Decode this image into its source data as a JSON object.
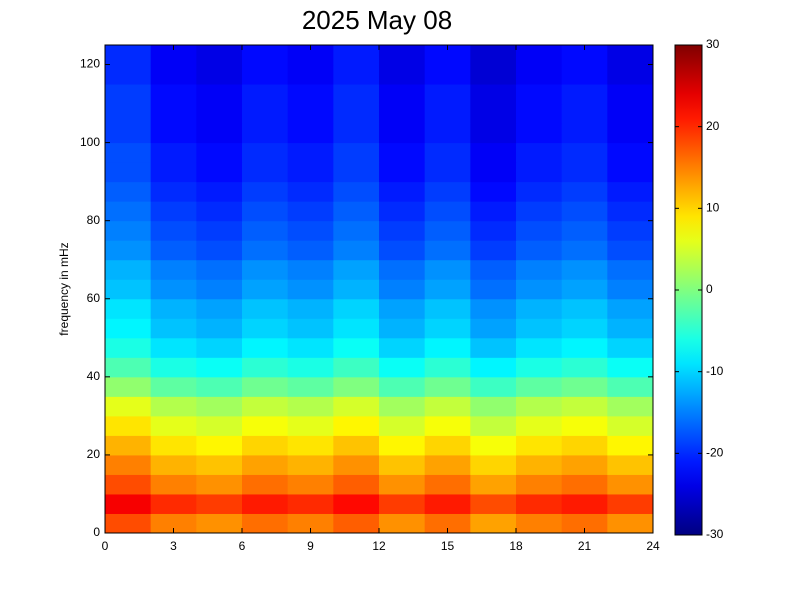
{
  "chart_data": {
    "type": "heatmap",
    "title": "2025 May 08",
    "y_label": "frequency in mHz",
    "colormap": "jet",
    "xbins": [
      0,
      2,
      4,
      6,
      8,
      10,
      12,
      14,
      16,
      18,
      20,
      22,
      24
    ],
    "ybins": [
      0,
      5,
      10,
      15,
      20,
      25,
      30,
      35,
      40,
      45,
      50,
      55,
      60,
      65,
      70,
      75,
      80,
      85,
      90,
      95,
      100,
      105,
      110,
      115,
      120,
      125
    ],
    "values": [
      [
        18,
        15,
        14,
        16,
        15,
        17,
        14,
        16,
        13,
        15,
        16,
        14
      ],
      [
        23,
        20,
        19,
        21,
        20,
        22,
        19,
        21,
        18,
        20,
        21,
        19
      ],
      [
        18,
        15,
        14,
        16,
        15,
        17,
        14,
        16,
        13,
        15,
        16,
        14
      ],
      [
        15,
        12,
        11,
        13,
        12,
        14,
        11,
        13,
        10,
        12,
        13,
        11
      ],
      [
        12,
        9,
        8,
        10,
        9,
        11,
        8,
        10,
        7,
        9,
        10,
        8
      ],
      [
        9,
        6,
        5,
        7,
        6,
        8,
        5,
        7,
        4,
        6,
        7,
        5
      ],
      [
        6,
        3,
        2,
        4,
        3,
        5,
        2,
        4,
        1,
        3,
        4,
        2
      ],
      [
        1,
        -2,
        -3,
        -1,
        -2,
        0,
        -3,
        -1,
        -4,
        -2,
        -1,
        -3
      ],
      [
        -3,
        -6,
        -7,
        -5,
        -6,
        -4,
        -7,
        -5,
        -8,
        -6,
        -5,
        -7
      ],
      [
        -6,
        -9,
        -10,
        -8,
        -9,
        -7,
        -10,
        -8,
        -11,
        -9,
        -8,
        -10
      ],
      [
        -8,
        -11,
        -12,
        -10,
        -11,
        -9,
        -12,
        -10,
        -13,
        -11,
        -10,
        -12
      ],
      [
        -9,
        -12,
        -13,
        -11,
        -12,
        -10,
        -13,
        -11,
        -14,
        -12,
        -11,
        -13
      ],
      [
        -11,
        -14,
        -15,
        -13,
        -14,
        -12,
        -15,
        -13,
        -16,
        -14,
        -13,
        -15
      ],
      [
        -12,
        -15,
        -16,
        -14,
        -15,
        -13,
        -16,
        -14,
        -17,
        -15,
        -14,
        -16
      ],
      [
        -14,
        -17,
        -18,
        -16,
        -17,
        -15,
        -18,
        -16,
        -19,
        -17,
        -16,
        -18
      ],
      [
        -15,
        -18,
        -19,
        -17,
        -18,
        -16,
        -19,
        -17,
        -20,
        -18,
        -17,
        -19
      ],
      [
        -16,
        -19,
        -20,
        -18,
        -19,
        -17,
        -20,
        -18,
        -21,
        -19,
        -18,
        -20
      ],
      [
        -17,
        -20,
        -21,
        -19,
        -20,
        -18,
        -21,
        -19,
        -22,
        -20,
        -19,
        -21
      ],
      [
        -18,
        -21,
        -22,
        -20,
        -21,
        -19,
        -22,
        -20,
        -23,
        -21,
        -20,
        -22
      ],
      [
        -18,
        -21,
        -22,
        -20,
        -21,
        -19,
        -22,
        -20,
        -23,
        -21,
        -20,
        -22
      ],
      [
        -19,
        -22,
        -23,
        -21,
        -22,
        -20,
        -23,
        -21,
        -24,
        -22,
        -21,
        -23
      ],
      [
        -19,
        -22,
        -23,
        -21,
        -22,
        -20,
        -23,
        -21,
        -24,
        -22,
        -21,
        -23
      ],
      [
        -19,
        -22,
        -23,
        -21,
        -22,
        -20,
        -23,
        -21,
        -24,
        -22,
        -21,
        -23
      ],
      [
        -20,
        -23,
        -24,
        -22,
        -23,
        -21,
        -24,
        -22,
        -25,
        -23,
        -22,
        -24
      ],
      [
        -20,
        -23,
        -24,
        -22,
        -23,
        -21,
        -24,
        -22,
        -25,
        -23,
        -22,
        -24
      ]
    ],
    "xlim": [
      0,
      24
    ],
    "xticks": [
      0,
      3,
      6,
      9,
      12,
      15,
      18,
      21,
      24
    ],
    "ylim": [
      0,
      125
    ],
    "yticks": [
      0,
      20,
      40,
      60,
      80,
      100,
      120
    ],
    "clim": [
      -30,
      30
    ],
    "cticks": [
      -30,
      -20,
      -10,
      0,
      10,
      20,
      30
    ]
  }
}
